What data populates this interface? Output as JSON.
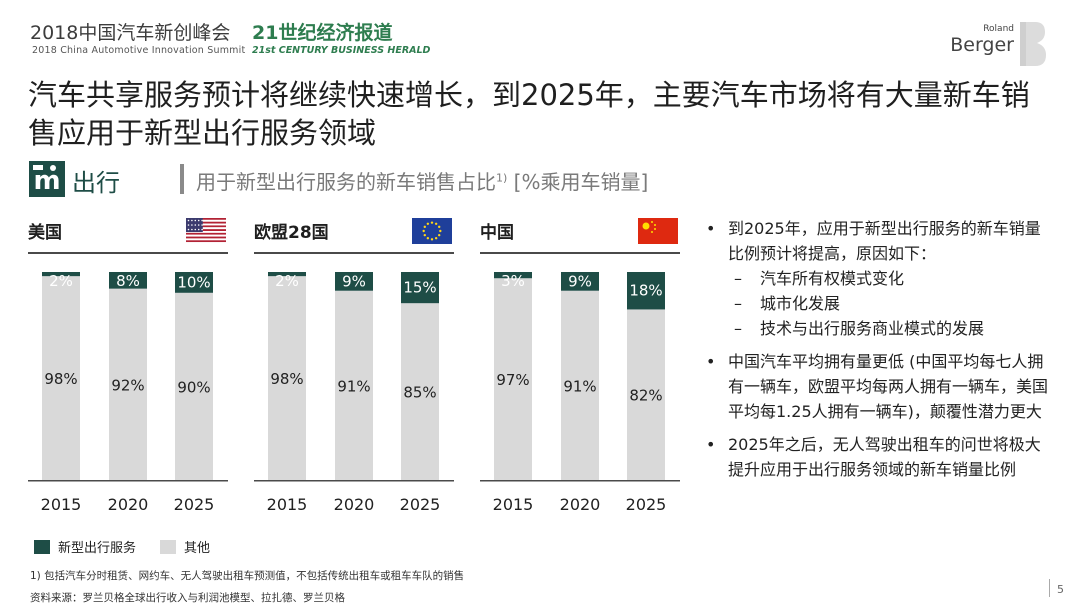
{
  "header": {
    "event_cn": "2018中国汽车新创峰会",
    "event_en": "2018 China Automotive Innovation Summit",
    "herald_cn": "21世纪经济报道",
    "herald_en": "21st CENTURY BUSINESS HERALD",
    "logo_roland": "Roland",
    "logo_berger": "Berger"
  },
  "title": "汽车共享服务预计将继续快速增长，到2025年，主要汽车市场将有大量新车销售应用于新型出行服务领域",
  "section": {
    "label": "出行",
    "subtitle": "用于新型出行服务的新车销售占比",
    "subtitle_sup": "1)",
    "subtitle_unit": "[%乘用车销量]"
  },
  "colors": {
    "new_mobility": "#1e4d46",
    "other": "#d9d9d9",
    "accent": "#1e4d46"
  },
  "chart_data": [
    {
      "type": "bar",
      "title": "美国",
      "flag": "us-flag-icon",
      "categories": [
        "2015",
        "2020",
        "2025"
      ],
      "series": [
        {
          "name": "新型出行服务",
          "values": [
            2,
            8,
            10
          ],
          "labels": [
            "2%",
            "8%",
            "10%"
          ]
        },
        {
          "name": "其他",
          "values": [
            98,
            92,
            90
          ],
          "labels": [
            "98%",
            "92%",
            "90%"
          ]
        }
      ],
      "ylim": [
        0,
        100
      ],
      "stacked": true
    },
    {
      "type": "bar",
      "title": "欧盟28国",
      "flag": "eu-flag-icon",
      "categories": [
        "2015",
        "2020",
        "2025"
      ],
      "series": [
        {
          "name": "新型出行服务",
          "values": [
            2,
            9,
            15
          ],
          "labels": [
            "2%",
            "9%",
            "15%"
          ]
        },
        {
          "name": "其他",
          "values": [
            98,
            91,
            85
          ],
          "labels": [
            "98%",
            "91%",
            "85%"
          ]
        }
      ],
      "ylim": [
        0,
        100
      ],
      "stacked": true
    },
    {
      "type": "bar",
      "title": "中国",
      "flag": "china-flag-icon",
      "categories": [
        "2015",
        "2020",
        "2025"
      ],
      "series": [
        {
          "name": "新型出行服务",
          "values": [
            3,
            9,
            18
          ],
          "labels": [
            "3%",
            "9%",
            "18%"
          ]
        },
        {
          "name": "其他",
          "values": [
            97,
            91,
            82
          ],
          "labels": [
            "97%",
            "91%",
            "82%"
          ]
        }
      ],
      "ylim": [
        0,
        100
      ],
      "stacked": true
    }
  ],
  "legend": {
    "new_mobility": "新型出行服务",
    "other": "其他"
  },
  "bullets": [
    {
      "text": "到2025年，应用于新型出行服务的新车销量比例预计将提高，原因如下：",
      "sub": [
        "汽车所有权模式变化",
        "城市化发展",
        "技术与出行服务商业模式的发展"
      ]
    },
    {
      "text": "中国汽车平均拥有量更低 (中国平均每七人拥有一辆车，欧盟平均每两人拥有一辆车，美国平均每1.25人拥有一辆车)，颠覆性潜力更大",
      "sub": []
    },
    {
      "text": "2025年之后，无人驾驶出租车的问世将极大提升应用于出行服务领域的新车销量比例",
      "sub": []
    }
  ],
  "footnote": "1) 包括汽车分时租赁、网约车、无人驾驶出租车预测值，不包括传统出租车或租车车队的销售",
  "source": "资料来源：罗兰贝格全球出行收入与利润池模型、拉扎德、罗兰贝格",
  "page_number": "5"
}
